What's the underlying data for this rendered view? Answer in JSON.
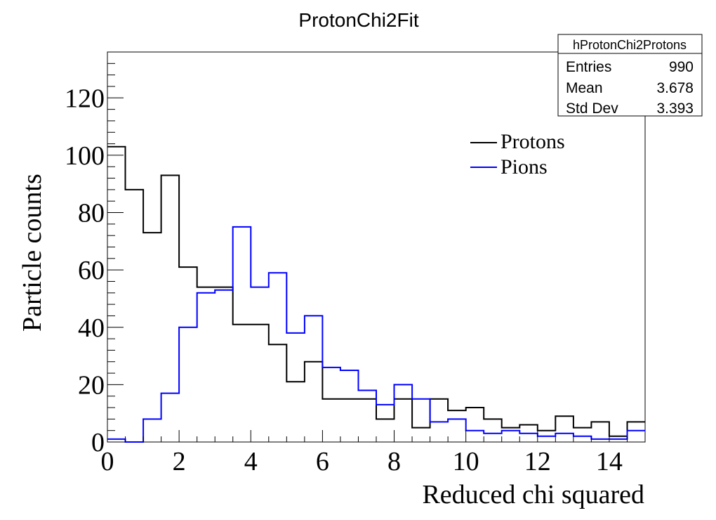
{
  "chart_data": {
    "type": "histogram",
    "title": "ProtonChi2Fit",
    "xlabel": "Reduced chi squared",
    "ylabel": "Particle counts",
    "xlim": [
      0,
      15
    ],
    "ylim": [
      0,
      136
    ],
    "x_ticks": [
      0,
      2,
      4,
      6,
      8,
      10,
      12,
      14
    ],
    "y_ticks": [
      0,
      20,
      40,
      60,
      80,
      100,
      120
    ],
    "bin_edges": [
      0,
      0.5,
      1,
      1.5,
      2,
      2.5,
      3,
      3.5,
      4,
      4.5,
      5,
      5.5,
      6,
      6.5,
      7,
      7.5,
      8,
      8.5,
      9,
      9.5,
      10,
      10.5,
      11,
      11.5,
      12,
      12.5,
      13,
      13.5,
      14,
      14.5,
      15
    ],
    "series": [
      {
        "name": "Protons",
        "color": "#000000",
        "values": [
          103,
          88,
          73,
          93,
          61,
          54,
          54,
          41,
          41,
          34,
          21,
          28,
          15,
          15,
          15,
          8,
          15,
          5,
          15,
          11,
          12,
          8,
          5,
          6,
          4,
          9,
          5,
          7,
          2,
          7
        ]
      },
      {
        "name": "Pions",
        "color": "#0000ff",
        "values": [
          1,
          0,
          8,
          17,
          40,
          52,
          53,
          75,
          54,
          59,
          38,
          44,
          26,
          25,
          18,
          13,
          20,
          15,
          7,
          8,
          4,
          3,
          4,
          3,
          2,
          3,
          2,
          1,
          1,
          4
        ]
      }
    ],
    "legend_position": "top-right",
    "stats_box": {
      "name": "hProtonChi2Protons",
      "rows": [
        {
          "label": "Entries",
          "value": "990"
        },
        {
          "label": "Mean",
          "value": "3.678"
        },
        {
          "label": "Std Dev",
          "value": "3.393"
        }
      ]
    }
  }
}
